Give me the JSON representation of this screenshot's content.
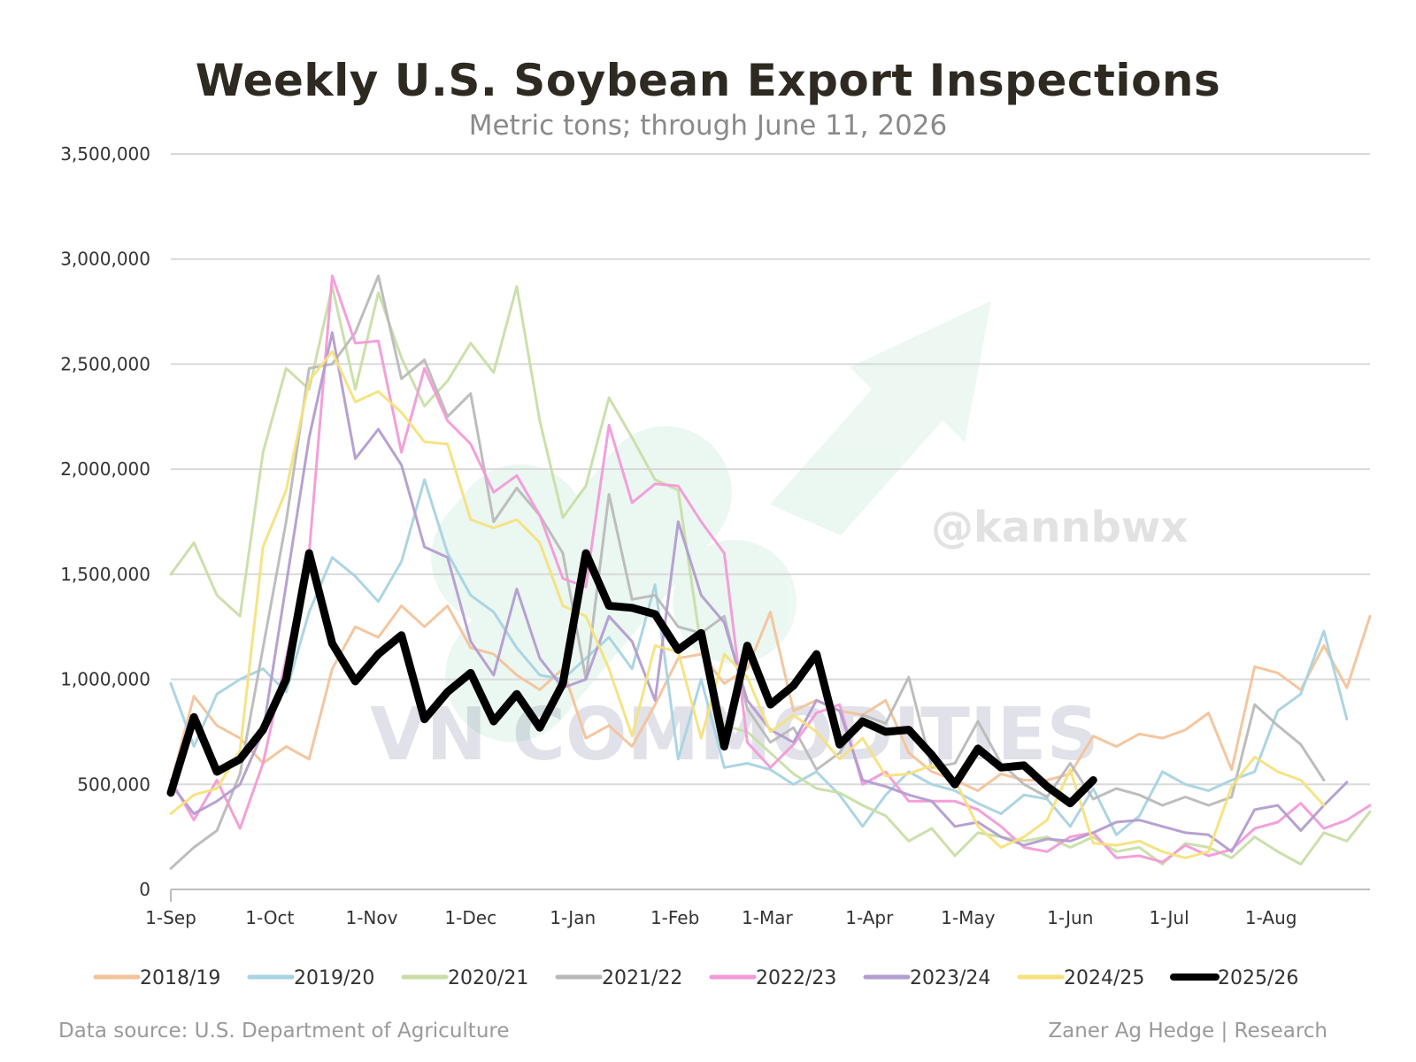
{
  "header": {
    "title": "Weekly U.S. Soybean Export Inspections",
    "subtitle": "Metric tons; through June 11, 2026"
  },
  "footer": {
    "source": "Data source: U.S. Department of Agriculture",
    "credit": "Zaner Ag Hedge | Research"
  },
  "watermarks": {
    "handle": "@kannbwx",
    "brand": "VN COMMODITIES"
  },
  "chart_data": {
    "type": "line",
    "title": "Weekly U.S. Soybean Export Inspections",
    "subtitle": "Metric tons; through June 11, 2026",
    "xlabel": "",
    "ylabel": "",
    "ylim": [
      0,
      3500000
    ],
    "xlim": [
      0,
      52
    ],
    "yticks": [
      0,
      500000,
      1000000,
      1500000,
      2000000,
      2500000,
      3000000,
      3500000
    ],
    "ytick_labels": [
      "0",
      "500,000",
      "1,000,000",
      "1,500,000",
      "2,000,000",
      "2,500,000",
      "3,000,000",
      "3,500,000"
    ],
    "xticks": [
      {
        "label": "1-Sep",
        "week": 0
      },
      {
        "label": "1-Oct",
        "week": 4.29
      },
      {
        "label": "1-Nov",
        "week": 8.71
      },
      {
        "label": "1-Dec",
        "week": 13
      },
      {
        "label": "1-Jan",
        "week": 17.43
      },
      {
        "label": "1-Feb",
        "week": 21.86
      },
      {
        "label": "1-Mar",
        "week": 25.86
      },
      {
        "label": "1-Apr",
        "week": 30.29
      },
      {
        "label": "1-May",
        "week": 34.57
      },
      {
        "label": "1-Jun",
        "week": 39
      },
      {
        "label": "1-Jul",
        "week": 43.29
      },
      {
        "label": "1-Aug",
        "week": 47.71
      }
    ],
    "grid": true,
    "legend": "bottom",
    "series": [
      {
        "name": "2018/19",
        "color": "#f3c39a",
        "width": 3,
        "values": [
          500000,
          920000,
          780000,
          720000,
          600000,
          680000,
          620000,
          1050000,
          1250000,
          1200000,
          1350000,
          1250000,
          1350000,
          1150000,
          1120000,
          1020000,
          950000,
          1050000,
          720000,
          780000,
          680000,
          880000,
          1100000,
          1120000,
          980000,
          1050000,
          1320000,
          850000,
          900000,
          850000,
          830000,
          900000,
          650000,
          560000,
          520000,
          470000,
          550000,
          520000,
          520000,
          550000,
          730000,
          680000,
          740000,
          720000,
          760000,
          840000,
          570000,
          1060000,
          1030000,
          950000,
          1160000,
          960000,
          1300000
        ]
      },
      {
        "name": "2019/20",
        "color": "#a8d3e2",
        "width": 3,
        "values": [
          980000,
          680000,
          930000,
          1000000,
          1050000,
          940000,
          1320000,
          1580000,
          1490000,
          1370000,
          1560000,
          1950000,
          1600000,
          1400000,
          1320000,
          1150000,
          1020000,
          1000000,
          1100000,
          1200000,
          1050000,
          1450000,
          620000,
          1000000,
          580000,
          600000,
          570000,
          500000,
          560000,
          450000,
          300000,
          450000,
          560000,
          500000,
          470000,
          410000,
          360000,
          450000,
          430000,
          300000,
          480000,
          260000,
          350000,
          560000,
          500000,
          470000,
          520000,
          560000,
          850000,
          930000,
          1230000,
          810000
        ]
      },
      {
        "name": "2020/21",
        "color": "#c8dea6",
        "width": 3,
        "values": [
          1500000,
          1650000,
          1400000,
          1300000,
          2080000,
          2480000,
          2380000,
          2870000,
          2380000,
          2840000,
          2530000,
          2300000,
          2420000,
          2600000,
          2460000,
          2870000,
          2230000,
          1770000,
          1920000,
          2340000,
          2150000,
          1950000,
          1900000,
          1150000,
          780000,
          750000,
          650000,
          550000,
          480000,
          460000,
          400000,
          350000,
          230000,
          290000,
          160000,
          270000,
          250000,
          230000,
          250000,
          200000,
          250000,
          180000,
          200000,
          120000,
          220000,
          200000,
          150000,
          250000,
          180000,
          120000,
          270000,
          230000,
          370000
        ]
      },
      {
        "name": "2021/22",
        "color": "#b9b9b9",
        "width": 3,
        "values": [
          100000,
          200000,
          280000,
          550000,
          1150000,
          1750000,
          2480000,
          2500000,
          2650000,
          2920000,
          2430000,
          2520000,
          2250000,
          2360000,
          1750000,
          1910000,
          1780000,
          1600000,
          1000000,
          1880000,
          1380000,
          1400000,
          1250000,
          1220000,
          1300000,
          860000,
          700000,
          770000,
          570000,
          650000,
          830000,
          790000,
          1010000,
          580000,
          600000,
          800000,
          600000,
          500000,
          440000,
          600000,
          430000,
          480000,
          450000,
          400000,
          440000,
          400000,
          440000,
          880000,
          780000,
          690000,
          520000
        ]
      },
      {
        "name": "2022/23",
        "color": "#f39ad8",
        "width": 3,
        "values": [
          520000,
          330000,
          520000,
          290000,
          600000,
          1100000,
          1600000,
          2920000,
          2600000,
          2610000,
          2080000,
          2480000,
          2230000,
          2120000,
          1890000,
          1970000,
          1780000,
          1480000,
          1440000,
          2210000,
          1840000,
          1930000,
          1920000,
          1750000,
          1600000,
          700000,
          580000,
          690000,
          840000,
          880000,
          500000,
          560000,
          420000,
          420000,
          420000,
          380000,
          300000,
          200000,
          180000,
          250000,
          270000,
          150000,
          160000,
          130000,
          210000,
          160000,
          190000,
          290000,
          320000,
          410000,
          290000,
          330000,
          400000
        ]
      },
      {
        "name": "2023/24",
        "color": "#b39cd0",
        "width": 3,
        "values": [
          500000,
          360000,
          420000,
          500000,
          750000,
          1450000,
          2150000,
          2650000,
          2050000,
          2190000,
          2020000,
          1630000,
          1580000,
          1180000,
          1020000,
          1430000,
          1100000,
          960000,
          1000000,
          1300000,
          1180000,
          900000,
          1750000,
          1400000,
          1270000,
          900000,
          760000,
          700000,
          900000,
          850000,
          520000,
          490000,
          450000,
          420000,
          300000,
          320000,
          250000,
          210000,
          240000,
          230000,
          270000,
          320000,
          330000,
          300000,
          270000,
          260000,
          180000,
          380000,
          400000,
          280000,
          400000,
          510000
        ]
      },
      {
        "name": "2024/25",
        "color": "#f6e17c",
        "width": 3,
        "values": [
          360000,
          450000,
          480000,
          660000,
          1630000,
          1900000,
          2420000,
          2560000,
          2320000,
          2370000,
          2270000,
          2130000,
          2120000,
          1760000,
          1720000,
          1760000,
          1650000,
          1350000,
          1300000,
          1050000,
          730000,
          1160000,
          1130000,
          720000,
          1120000,
          1010000,
          750000,
          830000,
          750000,
          620000,
          720000,
          540000,
          550000,
          590000,
          520000,
          300000,
          200000,
          250000,
          330000,
          570000,
          220000,
          210000,
          230000,
          180000,
          150000,
          180000,
          490000,
          630000,
          560000,
          520000,
          400000
        ]
      },
      {
        "name": "2025/26",
        "color": "#000000",
        "width": 9,
        "values": [
          460000,
          820000,
          560000,
          620000,
          760000,
          1000000,
          1600000,
          1170000,
          990000,
          1120000,
          1210000,
          810000,
          940000,
          1030000,
          800000,
          930000,
          770000,
          980000,
          1600000,
          1350000,
          1340000,
          1310000,
          1140000,
          1220000,
          680000,
          1160000,
          880000,
          970000,
          1120000,
          690000,
          800000,
          750000,
          760000,
          640000,
          500000,
          670000,
          580000,
          590000,
          490000,
          410000,
          520000
        ]
      }
    ]
  }
}
